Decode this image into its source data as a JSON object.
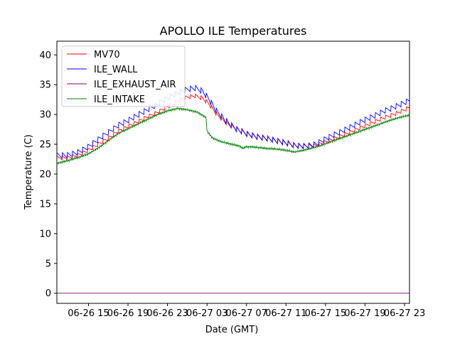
{
  "chart_data": {
    "type": "line",
    "title": "APOLLO ILE Temperatures",
    "xlabel": "Date (GMT)",
    "ylabel": "Temperature (C)",
    "xlim": [
      11.8,
      47.5
    ],
    "ylim": [
      -1.7,
      42.3
    ],
    "grid": false,
    "legend_position": "top-left",
    "x_unit": "hours since 06-26 00:00 GMT",
    "x_ticks": [
      {
        "value": 15,
        "label": "06-26 15"
      },
      {
        "value": 19,
        "label": "06-26 19"
      },
      {
        "value": 23,
        "label": "06-26 23"
      },
      {
        "value": 27,
        "label": "06-27 03"
      },
      {
        "value": 31,
        "label": "06-27 07"
      },
      {
        "value": 35,
        "label": "06-27 11"
      },
      {
        "value": 39,
        "label": "06-27 15"
      },
      {
        "value": 43,
        "label": "06-27 19"
      },
      {
        "value": 47,
        "label": "06-27 23"
      }
    ],
    "y_ticks": [
      0,
      5,
      10,
      15,
      20,
      25,
      30,
      35,
      40
    ],
    "series": [
      {
        "name": "MV70",
        "color": "#ff0000",
        "x": [
          11.8,
          13,
          14,
          15,
          16,
          17,
          18,
          19,
          20,
          21,
          22,
          23,
          24,
          25,
          25.8,
          26.5,
          27.2,
          28,
          29,
          30,
          31,
          32,
          33,
          34,
          35,
          36,
          37,
          38,
          39,
          40,
          41,
          42,
          43,
          44,
          45,
          46,
          47,
          47.5
        ],
        "y": [
          22.7,
          22.8,
          23.2,
          24.0,
          25.0,
          26.0,
          27.2,
          28.0,
          28.8,
          29.6,
          30.4,
          31.3,
          32.2,
          32.9,
          33.1,
          32.8,
          31.8,
          30.0,
          28.5,
          27.5,
          26.8,
          26.3,
          26.0,
          25.6,
          25.2,
          24.8,
          24.7,
          24.8,
          25.4,
          26.0,
          26.7,
          27.4,
          28.1,
          28.8,
          29.5,
          30.1,
          30.8,
          31.2
        ],
        "oscillation_amplitude": 0.7
      },
      {
        "name": "ILE_WALL",
        "color": "#0000ff",
        "x": [
          11.8,
          13,
          14,
          15,
          16,
          17,
          18,
          19,
          20,
          21,
          22,
          23,
          24,
          25,
          25.8,
          26.5,
          27.2,
          28,
          29,
          30,
          31,
          32,
          33,
          34,
          35,
          36,
          37,
          38,
          39,
          40,
          41,
          42,
          43,
          44,
          45,
          46,
          47,
          47.5
        ],
        "y": [
          23.1,
          23.2,
          23.7,
          24.6,
          25.8,
          27.0,
          28.2,
          29.0,
          29.9,
          30.8,
          31.8,
          32.8,
          33.6,
          34.2,
          34.4,
          34.0,
          32.6,
          30.5,
          28.8,
          27.5,
          26.8,
          26.3,
          26.0,
          25.6,
          25.2,
          24.8,
          24.7,
          25.0,
          25.9,
          26.7,
          27.5,
          28.3,
          29.1,
          29.8,
          30.6,
          31.3,
          32.0,
          32.4
        ],
        "oscillation_amplitude": 1.0
      },
      {
        "name": "ILE_EXHAUST_AIR",
        "color": "#800080",
        "x": [
          11.8,
          47.5
        ],
        "y": [
          0,
          0
        ]
      },
      {
        "name": "ILE_INTAKE",
        "color": "#008000",
        "x": [
          11.8,
          13,
          14,
          15,
          16,
          17,
          18,
          19,
          20,
          21,
          22,
          23,
          24,
          25,
          26,
          26.9,
          27.0,
          27.6,
          28.5,
          29.5,
          30.3,
          30.6,
          31,
          32,
          33,
          34,
          35,
          35.8,
          36.5,
          37.5,
          38.5,
          39.5,
          40.5,
          41.5,
          42.5,
          43.5,
          44.5,
          45.5,
          46.5,
          47.5
        ],
        "y": [
          21.8,
          22.3,
          22.8,
          23.4,
          24.4,
          25.6,
          26.8,
          27.6,
          28.4,
          29.2,
          30.0,
          30.6,
          31.0,
          30.8,
          30.4,
          29.5,
          27.2,
          26.0,
          25.4,
          25.0,
          24.7,
          24.3,
          24.6,
          24.5,
          24.3,
          24.2,
          24.0,
          23.7,
          23.9,
          24.3,
          24.8,
          25.4,
          26.0,
          26.6,
          27.2,
          27.8,
          28.4,
          29.0,
          29.5,
          29.9
        ]
      }
    ]
  }
}
